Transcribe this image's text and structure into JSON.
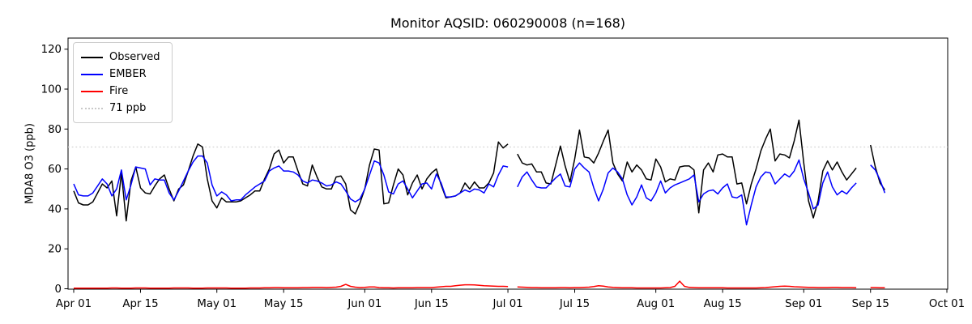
{
  "chart_data": {
    "type": "line",
    "title": "Monitor AQSID: 060290008 (n=168)",
    "ylabel": "MDA8 O3 (ppb)",
    "xlabel": "",
    "grid": false,
    "legend_position": "upper-left",
    "ylim": [
      -1,
      125.5
    ],
    "y_ticks": [
      0,
      20,
      40,
      60,
      80,
      100,
      120
    ],
    "x_ticks": [
      {
        "pos": 0,
        "label": "Apr 01"
      },
      {
        "pos": 14,
        "label": "Apr 15"
      },
      {
        "pos": 30,
        "label": "May 01"
      },
      {
        "pos": 44,
        "label": "May 15"
      },
      {
        "pos": 61,
        "label": "Jun 01"
      },
      {
        "pos": 75,
        "label": "Jun 15"
      },
      {
        "pos": 91,
        "label": "Jul 01"
      },
      {
        "pos": 105,
        "label": "Jul 15"
      },
      {
        "pos": 122,
        "label": "Aug 01"
      },
      {
        "pos": 136,
        "label": "Aug 15"
      },
      {
        "pos": 153,
        "label": "Sep 01"
      },
      {
        "pos": 167,
        "label": "Sep 15"
      },
      {
        "pos": 183,
        "label": "Oct 01"
      }
    ],
    "x_unit": "days since Apr 01",
    "threshold": {
      "value": 71,
      "label": "71 ppb",
      "color": "#d3d3d3",
      "style": "dotted"
    },
    "legend_entries": [
      {
        "label": "Observed",
        "color": "#000000",
        "style": "solid"
      },
      {
        "label": "EMBER",
        "color": "#0000ff",
        "style": "solid"
      },
      {
        "label": "Fire",
        "color": "#ff0000",
        "style": "solid"
      },
      {
        "label": "71 ppb",
        "color": "#c9c9c9",
        "style": "dotted"
      }
    ],
    "series": [
      {
        "name": "Observed",
        "color": "#000000",
        "values": [
          49,
          43,
          42,
          42,
          43.5,
          48,
          52.5,
          50.5,
          54,
          36.5,
          58,
          34,
          54,
          61,
          50.5,
          48,
          47.5,
          51.5,
          55,
          57,
          50,
          44,
          50,
          52,
          59,
          66.5,
          72.5,
          71,
          55,
          44,
          40.5,
          45.5,
          43.5,
          43.5,
          43.5,
          44,
          45.5,
          47,
          49,
          49,
          55,
          60,
          67.5,
          69.5,
          63,
          66,
          66,
          59,
          52.5,
          51.5,
          62,
          56,
          51,
          50,
          50,
          56,
          56.5,
          52.5,
          39.5,
          37.5,
          43,
          50,
          62,
          70,
          69.5,
          42.5,
          43,
          52,
          60,
          57,
          47,
          53,
          57,
          50,
          55,
          58,
          60,
          52,
          45.5,
          46,
          46.5,
          48,
          53,
          50,
          53.5,
          50.5,
          50.5,
          53,
          58,
          73.5,
          70.5,
          72.5,
          null,
          67.5,
          63,
          62,
          62.5,
          58.5,
          58.5,
          53,
          52.5,
          62,
          71.5,
          61.5,
          53.5,
          65,
          79.5,
          66,
          65.5,
          63,
          68,
          74,
          79.5,
          63,
          57.5,
          54,
          63.5,
          58.5,
          62,
          59.5,
          55,
          54.5,
          65,
          61,
          53.5,
          55,
          54.5,
          61,
          61.5,
          61.5,
          59.5,
          38,
          59.5,
          63,
          58.5,
          67,
          67.5,
          66,
          66,
          52.5,
          53,
          42.5,
          52.5,
          60,
          69,
          75,
          80,
          64,
          67.5,
          67,
          65.5,
          74,
          84.5,
          63,
          44,
          35.5,
          44,
          59,
          64,
          59.5,
          63.5,
          58.5,
          54.5,
          57.5,
          60.5,
          null,
          null,
          72,
          61,
          53,
          49.5,
          null,
          null,
          null,
          null,
          null,
          null,
          null,
          null,
          null,
          null,
          null,
          null
        ]
      },
      {
        "name": "EMBER",
        "color": "#0000ff",
        "values": [
          52.5,
          47,
          46.5,
          46.5,
          48,
          51.5,
          55,
          52.5,
          46.5,
          50,
          59.5,
          44.5,
          52,
          61,
          60.5,
          60,
          52,
          55,
          54.5,
          54.5,
          48,
          44.5,
          49,
          54,
          59,
          63.5,
          66.5,
          66.5,
          63,
          52,
          46.5,
          48.5,
          47,
          44,
          44.5,
          44.5,
          47,
          49,
          51,
          52.5,
          54,
          59,
          60.5,
          61.5,
          59,
          59,
          58.5,
          57,
          54,
          53,
          54.5,
          54,
          53,
          51.5,
          52,
          53.5,
          52.5,
          49,
          45,
          43.5,
          45,
          50,
          57,
          64,
          63,
          57,
          48.5,
          47.5,
          52.5,
          54,
          50,
          45.5,
          49,
          52.5,
          53,
          50,
          57.5,
          53,
          46,
          46,
          46.5,
          48,
          49.5,
          48.5,
          50,
          49.5,
          48,
          52.5,
          51,
          57,
          61.5,
          61,
          null,
          51,
          56,
          58.5,
          54.5,
          51,
          50.5,
          50.5,
          53,
          55.5,
          57.5,
          51.5,
          51,
          60,
          63,
          60.5,
          58.5,
          50.5,
          44,
          50,
          58,
          60.5,
          58.5,
          55,
          47,
          42,
          46,
          52,
          45.5,
          44,
          48,
          54,
          48,
          50.5,
          52,
          53,
          54,
          55,
          57,
          43.5,
          47.5,
          49,
          49.5,
          47.5,
          50.5,
          52.5,
          46,
          45.5,
          47,
          32,
          42,
          51,
          56,
          58.5,
          58,
          52.5,
          55,
          57.5,
          56,
          59,
          64.5,
          55,
          48,
          40,
          42,
          53,
          58.5,
          51,
          47,
          49,
          47.5,
          50.5,
          53,
          null,
          null,
          62,
          59.5,
          54.5,
          48,
          null,
          null,
          null,
          null,
          null,
          null,
          null,
          null,
          null,
          null,
          null,
          null
        ]
      },
      {
        "name": "Fire",
        "color": "#ff0000",
        "values": [
          0.3,
          0.3,
          0.3,
          0.3,
          0.3,
          0.3,
          0.3,
          0.3,
          0.4,
          0.4,
          0.3,
          0.3,
          0.3,
          0.4,
          0.4,
          0.4,
          0.3,
          0.3,
          0.3,
          0.3,
          0.3,
          0.4,
          0.4,
          0.4,
          0.4,
          0.3,
          0.3,
          0.3,
          0.4,
          0.4,
          0.4,
          0.4,
          0.4,
          0.3,
          0.3,
          0.3,
          0.3,
          0.4,
          0.4,
          0.4,
          0.5,
          0.5,
          0.6,
          0.6,
          0.5,
          0.5,
          0.5,
          0.5,
          0.6,
          0.6,
          0.7,
          0.7,
          0.7,
          0.6,
          0.7,
          0.8,
          1.2,
          2.2,
          1.2,
          0.8,
          0.6,
          0.7,
          0.9,
          0.9,
          0.6,
          0.5,
          0.5,
          0.4,
          0.5,
          0.5,
          0.5,
          0.5,
          0.6,
          0.6,
          0.6,
          0.6,
          0.8,
          1.0,
          1.2,
          1.2,
          1.5,
          1.8,
          2.0,
          2.0,
          1.9,
          1.7,
          1.5,
          1.4,
          1.3,
          1.2,
          1.2,
          1.1,
          null,
          0.9,
          0.8,
          0.7,
          0.6,
          0.6,
          0.5,
          0.5,
          0.5,
          0.5,
          0.6,
          0.6,
          0.5,
          0.6,
          0.6,
          0.7,
          0.8,
          1.1,
          1.5,
          1.3,
          0.9,
          0.7,
          0.6,
          0.5,
          0.5,
          0.5,
          0.4,
          0.4,
          0.4,
          0.4,
          0.4,
          0.4,
          0.5,
          0.6,
          1.2,
          3.8,
          1.2,
          0.7,
          0.6,
          0.5,
          0.5,
          0.5,
          0.5,
          0.5,
          0.5,
          0.4,
          0.4,
          0.4,
          0.4,
          0.4,
          0.4,
          0.4,
          0.5,
          0.6,
          0.8,
          1.0,
          1.2,
          1.3,
          1.2,
          1.0,
          0.9,
          0.8,
          0.7,
          0.7,
          0.6,
          0.6,
          0.6,
          0.7,
          0.7,
          0.6,
          0.6,
          0.6,
          0.5,
          null,
          null,
          0.6,
          0.6,
          0.5,
          0.5,
          null,
          null,
          null,
          null,
          null,
          null,
          null,
          null,
          null,
          null,
          null,
          null
        ]
      }
    ]
  }
}
